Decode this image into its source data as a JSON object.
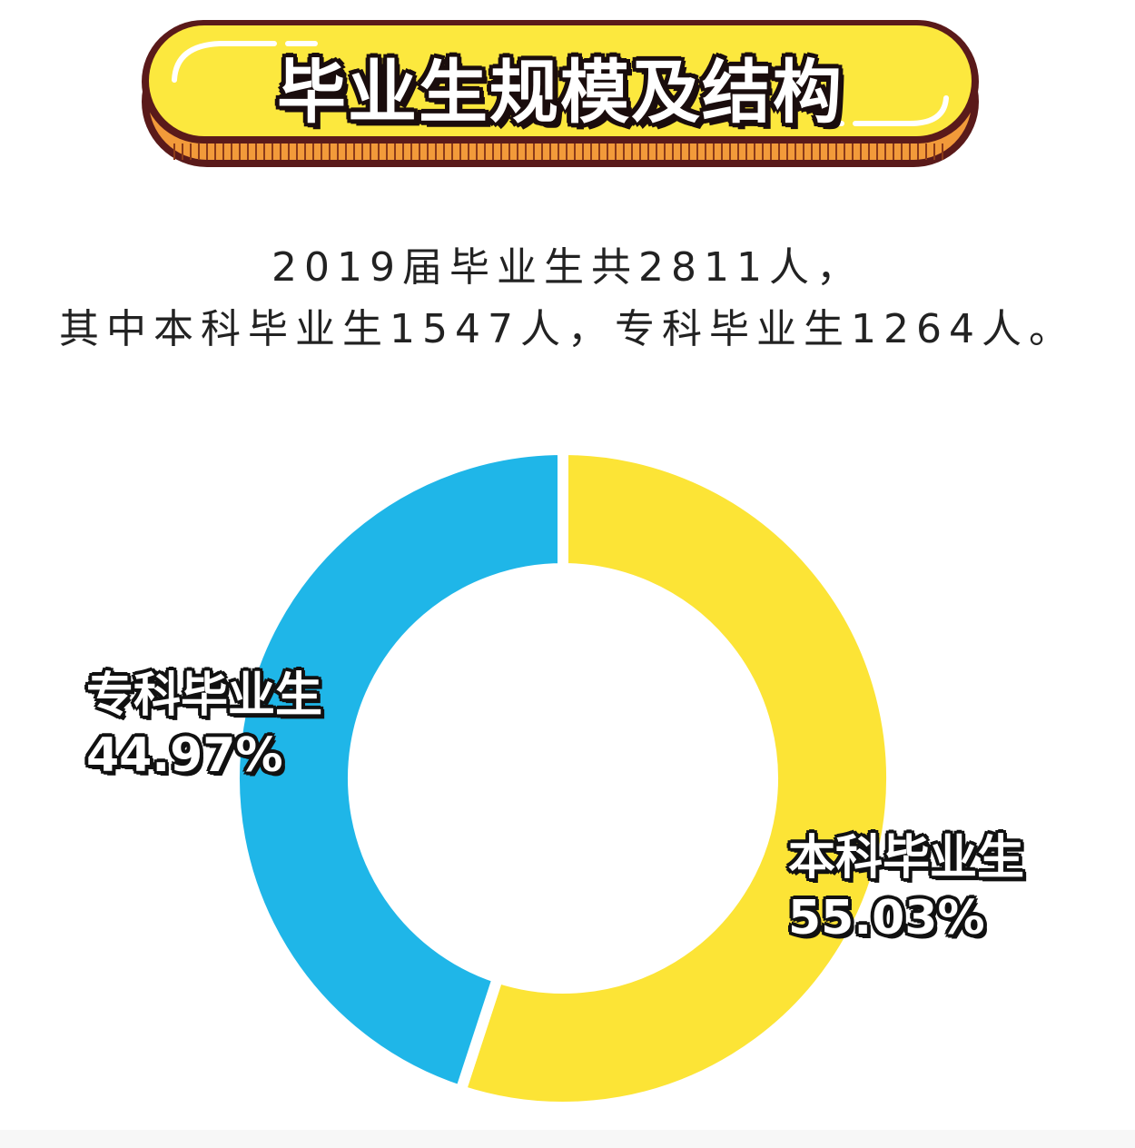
{
  "header": {
    "title": "毕业生规模及结构"
  },
  "summary": {
    "line1": "2019届毕业生共2811人，",
    "line2": "其中本科毕业生1547人，专科毕业生1264人。"
  },
  "chart_data": {
    "type": "pie",
    "style": "donut",
    "categories": [
      "本科毕业生",
      "专科毕业生"
    ],
    "values": [
      1547,
      1264
    ],
    "percent_labels": [
      "55.03%",
      "44.97%"
    ],
    "colors": [
      "#FCE436",
      "#1FB6E8"
    ]
  }
}
